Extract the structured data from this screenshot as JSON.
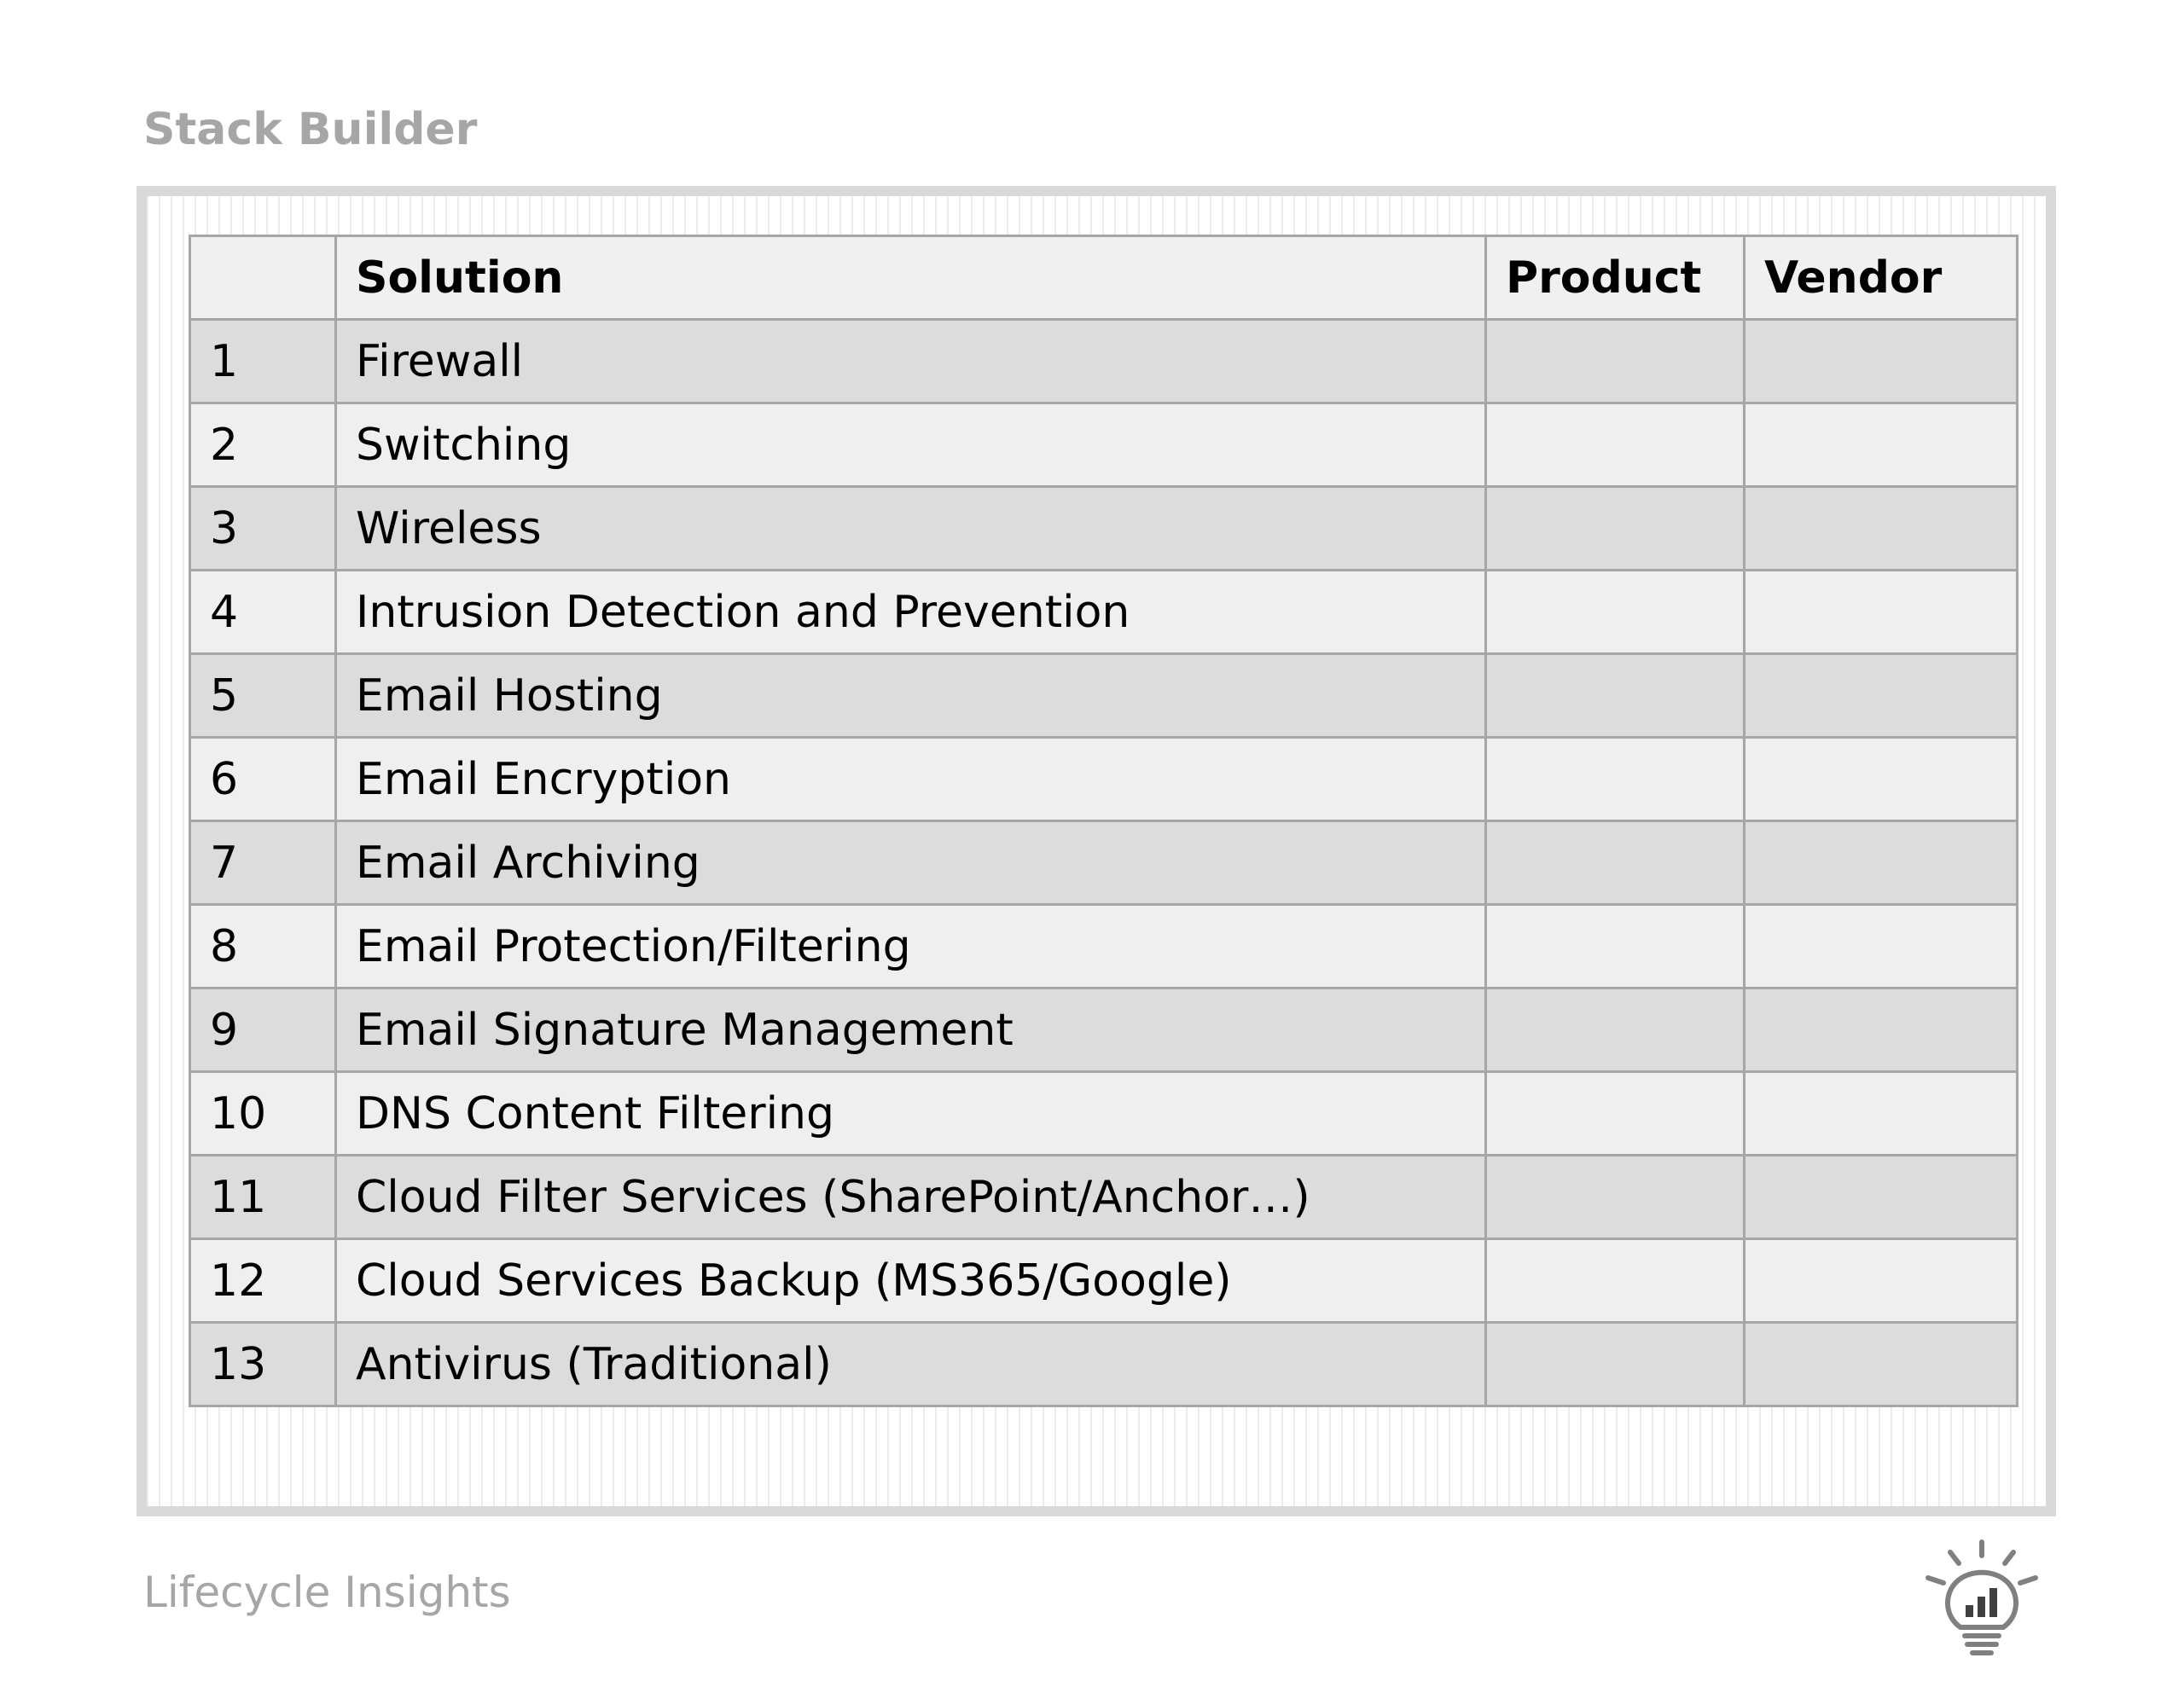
{
  "header": {
    "title": "Stack Builder"
  },
  "table": {
    "columns": [
      "",
      "Solution",
      "Product",
      "Vendor"
    ],
    "rows": [
      {
        "num": "1",
        "solution": "Firewall",
        "product": "",
        "vendor": ""
      },
      {
        "num": "2",
        "solution": "Switching",
        "product": "",
        "vendor": ""
      },
      {
        "num": "3",
        "solution": "Wireless",
        "product": "",
        "vendor": ""
      },
      {
        "num": "4",
        "solution": "Intrusion Detection and Prevention",
        "product": "",
        "vendor": ""
      },
      {
        "num": "5",
        "solution": "Email Hosting",
        "product": "",
        "vendor": ""
      },
      {
        "num": "6",
        "solution": "Email Encryption",
        "product": "",
        "vendor": ""
      },
      {
        "num": "7",
        "solution": "Email Archiving",
        "product": "",
        "vendor": ""
      },
      {
        "num": "8",
        "solution": "Email Protection/Filtering",
        "product": "",
        "vendor": ""
      },
      {
        "num": "9",
        "solution": "Email Signature Management",
        "product": "",
        "vendor": ""
      },
      {
        "num": "10",
        "solution": "DNS Content Filtering",
        "product": "",
        "vendor": ""
      },
      {
        "num": "11",
        "solution": "Cloud Filter Services (SharePoint/Anchor…)",
        "product": "",
        "vendor": ""
      },
      {
        "num": "12",
        "solution": "Cloud Services Backup (MS365/Google)",
        "product": "",
        "vendor": ""
      },
      {
        "num": "13",
        "solution": "Antivirus (Traditional)",
        "product": "",
        "vendor": ""
      }
    ]
  },
  "footer": {
    "brand": "Lifecycle Insights",
    "logo_icon": "lightbulb-chart-icon"
  },
  "colors": {
    "row_dark": "#dcdcdc",
    "row_light": "#efefef",
    "border": "#a6a6a6",
    "muted_text": "#a6a6a6"
  }
}
